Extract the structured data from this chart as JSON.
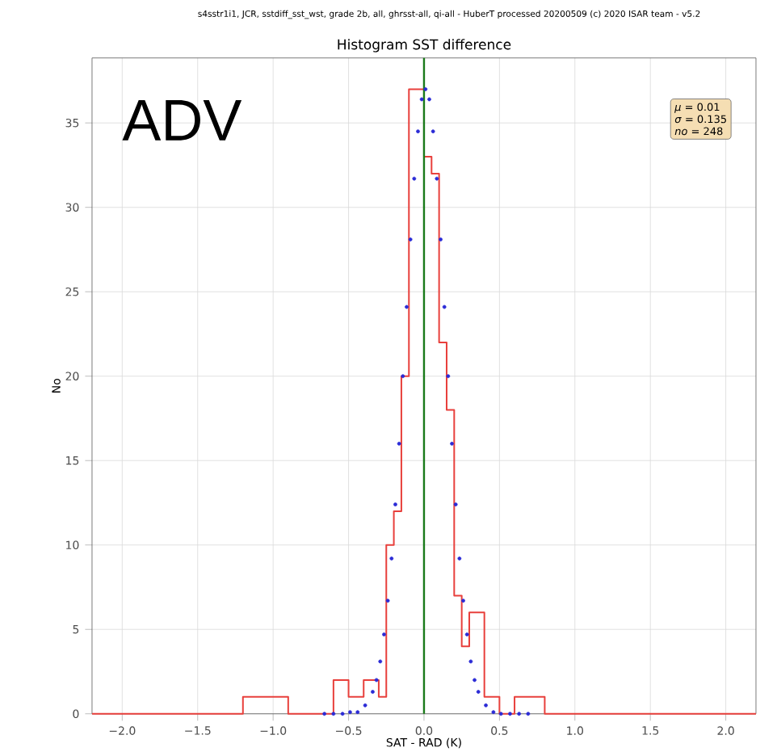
{
  "chart_data": {
    "type": "histogram",
    "title": "Histogram SST difference",
    "xlabel": "SAT - RAD (K)",
    "ylabel": "No",
    "annotations": [
      "s4sstr1i1, JCR, sstdiff_sst_wst, grade 2b, all, ghrsst-all, qi-all - HuberT   processed 20200509 (c) 2020 ISAR team - v5.2",
      "ADV",
      "*μ* = 0.01",
      "*σ* = 0.135",
      "*no* = 248"
    ],
    "series": [
      {
        "type": "histogram",
        "color": "#e8403c",
        "bins": [
          -2.2,
          -1.2,
          -0.9,
          -0.6,
          -0.5,
          -0.4,
          -0.3,
          -0.25,
          -0.2,
          -0.15,
          -0.1,
          0.0,
          0.05,
          0.1,
          0.15,
          0.2,
          0.25,
          0.3,
          0.4,
          0.5,
          0.6,
          0.8,
          2.2
        ],
        "values": [
          0,
          1,
          0,
          2,
          1,
          2,
          1,
          10,
          12,
          20,
          37,
          33,
          32,
          22,
          18,
          7,
          4,
          6,
          1,
          0,
          1,
          0
        ]
      },
      {
        "type": "scatter",
        "color": "#2b2bd6",
        "marker": "circle",
        "x": [
          -0.66,
          -0.6,
          -0.54,
          -0.49,
          -0.44,
          -0.39,
          -0.34,
          -0.315,
          -0.29,
          -0.265,
          -0.24,
          -0.215,
          -0.19,
          -0.165,
          -0.14,
          -0.115,
          -0.09,
          -0.065,
          -0.04,
          -0.015,
          0.01,
          0.035,
          0.06,
          0.085,
          0.11,
          0.135,
          0.16,
          0.185,
          0.21,
          0.235,
          0.26,
          0.285,
          0.31,
          0.335,
          0.36,
          0.41,
          0.46,
          0.51,
          0.57,
          0.63,
          0.69
        ],
        "values": [
          0,
          0,
          0,
          0.1,
          0.1,
          0.5,
          1.3,
          2.0,
          3.1,
          4.7,
          6.7,
          9.2,
          12.4,
          16.0,
          20.0,
          24.1,
          28.1,
          31.7,
          34.5,
          36.4,
          37,
          36.4,
          34.5,
          31.7,
          28.1,
          24.1,
          20.0,
          16.0,
          12.4,
          9.2,
          6.7,
          4.7,
          3.1,
          2.0,
          1.3,
          0.5,
          0.1,
          0,
          0,
          0,
          0
        ]
      }
    ],
    "ref_lines": [
      {
        "axis": "x",
        "value": 0,
        "color": "#1a7a1a"
      }
    ],
    "xlim": [
      -2.2,
      2.2
    ],
    "ylim": [
      0,
      38.85
    ],
    "xticks": [
      {
        "value": -2,
        "label": "−2.0"
      },
      {
        "value": -1.5,
        "label": "−1.5"
      },
      {
        "value": -1,
        "label": "−1.0"
      },
      {
        "value": -0.5,
        "label": "−0.5"
      },
      {
        "value": 0,
        "label": "0.0"
      },
      {
        "value": 0.5,
        "label": "0.5"
      },
      {
        "value": 1,
        "label": "1.0"
      },
      {
        "value": 1.5,
        "label": "1.5"
      },
      {
        "value": 2,
        "label": "2.0"
      }
    ],
    "yticks": [
      0,
      5,
      10,
      15,
      20,
      25,
      30,
      35
    ],
    "grid": true
  }
}
